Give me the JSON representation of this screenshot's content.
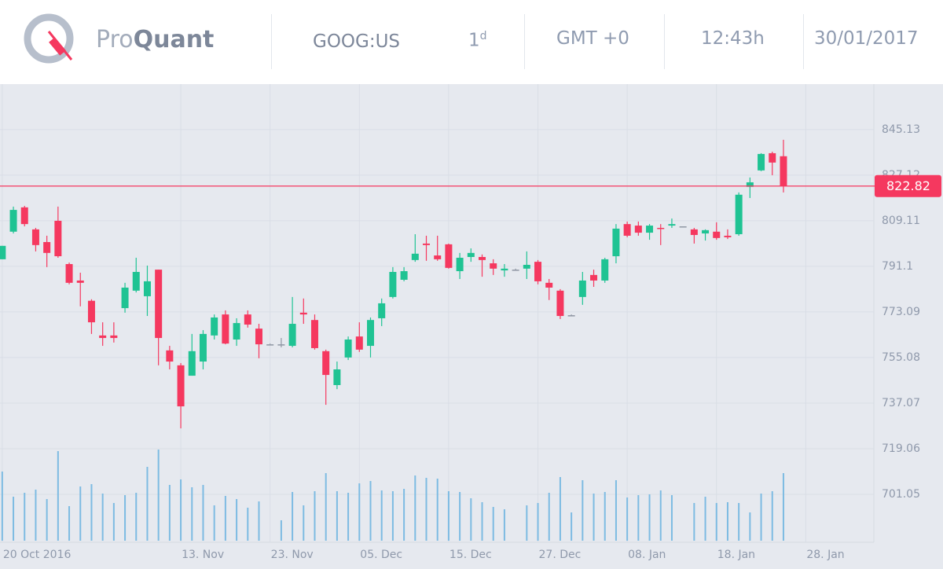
{
  "header": {
    "brand_light": "Pro",
    "brand_bold": "Quant",
    "symbol": "GOOG:US",
    "timeframe": {
      "value": "1",
      "unit": "d"
    },
    "timezone": "GMT +0",
    "time": "12:43h",
    "date": "30/01/2017"
  },
  "chart_data": {
    "type": "candlestick",
    "up_color": "#1fc393",
    "down_color": "#f5385f",
    "flat_color": "#8f96a3",
    "volume_color": "#7dbbe2",
    "open": [
      793.9,
      804.8,
      814.4,
      805.7,
      800.7,
      809.1,
      792.0,
      785.5,
      777.5,
      763.8,
      763.8,
      774.6,
      781.5,
      779.3,
      789.8,
      757.9,
      752.0,
      747.9,
      753.5,
      763.8,
      772.1,
      762.2,
      772.1,
      766.5,
      760.3,
      760.3,
      759.7,
      772.8,
      769.9,
      757.6,
      744.2,
      755.1,
      763.4,
      759.7,
      770.6,
      779.0,
      785.8,
      793.6,
      800.1,
      795.4,
      799.8,
      789.2,
      794.8,
      794.8,
      792.3,
      789.5,
      789.8,
      790.2,
      792.9,
      784.6,
      781.5,
      771.8,
      779.0,
      787.7,
      785.5,
      795.1,
      807.8,
      807.2,
      804.4,
      806.3,
      807.2,
      806.9,
      805.7,
      804.1,
      804.8,
      803.2,
      803.8,
      822.5,
      829.0,
      835.8,
      834.6
    ],
    "high": [
      799.2,
      814.7,
      815.0,
      806.3,
      803.2,
      814.7,
      792.6,
      788.6,
      778.1,
      769.0,
      769.0,
      784.6,
      794.5,
      791.4,
      789.8,
      759.7,
      752.9,
      764.4,
      765.9,
      772.1,
      773.7,
      770.6,
      773.7,
      768.4,
      760.6,
      762.8,
      779.0,
      778.4,
      772.1,
      758.2,
      753.5,
      763.4,
      769.0,
      770.9,
      778.4,
      790.8,
      790.8,
      803.8,
      803.2,
      803.2,
      800.1,
      796.4,
      798.2,
      795.8,
      793.9,
      792.0,
      790.2,
      797.0,
      793.6,
      786.1,
      782.1,
      772.1,
      788.9,
      789.8,
      794.5,
      807.8,
      808.8,
      808.8,
      807.8,
      807.8,
      810.0,
      806.9,
      806.3,
      805.7,
      808.5,
      805.7,
      820.3,
      826.2,
      835.8,
      836.4,
      841.1
    ],
    "low": [
      793.9,
      804.1,
      806.9,
      797.0,
      790.8,
      794.5,
      784.0,
      775.3,
      764.4,
      759.7,
      761.0,
      772.8,
      780.8,
      771.5,
      752.0,
      750.4,
      727.1,
      747.9,
      750.4,
      762.2,
      760.3,
      759.7,
      766.9,
      754.8,
      760.3,
      759.1,
      759.1,
      768.4,
      758.2,
      736.4,
      742.6,
      754.1,
      757.3,
      755.1,
      767.5,
      778.4,
      785.2,
      792.9,
      793.3,
      793.3,
      790.2,
      786.1,
      792.9,
      787.0,
      787.7,
      787.0,
      789.5,
      786.1,
      784.0,
      777.8,
      770.3,
      771.5,
      775.9,
      783.0,
      784.6,
      792.3,
      802.6,
      803.2,
      801.6,
      799.5,
      806.3,
      806.9,
      800.1,
      801.3,
      801.6,
      801.9,
      803.2,
      818.1,
      828.7,
      827.1,
      820.3
    ],
    "close": [
      799.2,
      813.4,
      807.8,
      799.5,
      796.4,
      795.1,
      784.6,
      784.6,
      769.0,
      762.8,
      762.8,
      782.7,
      788.9,
      785.2,
      762.8,
      753.5,
      735.8,
      757.6,
      764.4,
      770.9,
      760.6,
      768.7,
      768.1,
      760.3,
      760.3,
      760.3,
      768.4,
      772.1,
      758.8,
      748.2,
      750.4,
      762.2,
      758.2,
      769.9,
      776.5,
      788.9,
      789.2,
      796.1,
      799.5,
      793.9,
      790.5,
      794.5,
      796.4,
      793.6,
      790.2,
      790.2,
      789.8,
      791.7,
      785.2,
      782.7,
      771.5,
      771.8,
      785.5,
      785.5,
      793.9,
      806.0,
      803.2,
      804.4,
      807.2,
      806.0,
      807.8,
      806.9,
      803.5,
      805.4,
      802.3,
      802.6,
      819.4,
      824.3,
      835.5,
      832.1,
      822.8
    ],
    "volume": [
      88,
      56,
      61,
      65,
      53,
      114,
      44,
      69,
      72,
      60,
      48,
      58,
      61,
      94,
      116,
      71,
      78,
      68,
      71,
      45,
      57,
      53,
      42,
      50,
      null,
      26,
      62,
      45,
      63,
      86,
      63,
      61,
      73,
      76,
      64,
      63,
      66,
      83,
      80,
      79,
      63,
      62,
      54,
      49,
      43,
      40,
      null,
      45,
      48,
      61,
      81,
      36,
      77,
      60,
      62,
      77,
      55,
      58,
      59,
      64,
      58,
      null,
      48,
      56,
      48,
      49,
      48,
      36,
      60,
      63,
      86
    ],
    "vlim": [
      0,
      120
    ],
    "xlim": [
      -0.2,
      78.1
    ],
    "xticks": [
      {
        "value": 0,
        "label": "20 Oct 2016"
      },
      {
        "value": 16,
        "label": "13. Nov"
      },
      {
        "value": 24,
        "label": "23. Nov"
      },
      {
        "value": 32,
        "label": "05. Dec"
      },
      {
        "value": 40,
        "label": "15. Dec"
      },
      {
        "value": 48,
        "label": "27. Dec"
      },
      {
        "value": 56,
        "label": "08. Jan"
      },
      {
        "value": 64,
        "label": "18. Jan"
      },
      {
        "value": 72,
        "label": "28. Jan"
      }
    ],
    "ylim": [
      682.1,
      863.1
    ],
    "yticks": [
      701.05,
      719.06,
      737.07,
      755.08,
      773.09,
      791.1,
      809.11,
      827.12,
      845.13
    ],
    "last_price": 822.82,
    "grid": true
  }
}
